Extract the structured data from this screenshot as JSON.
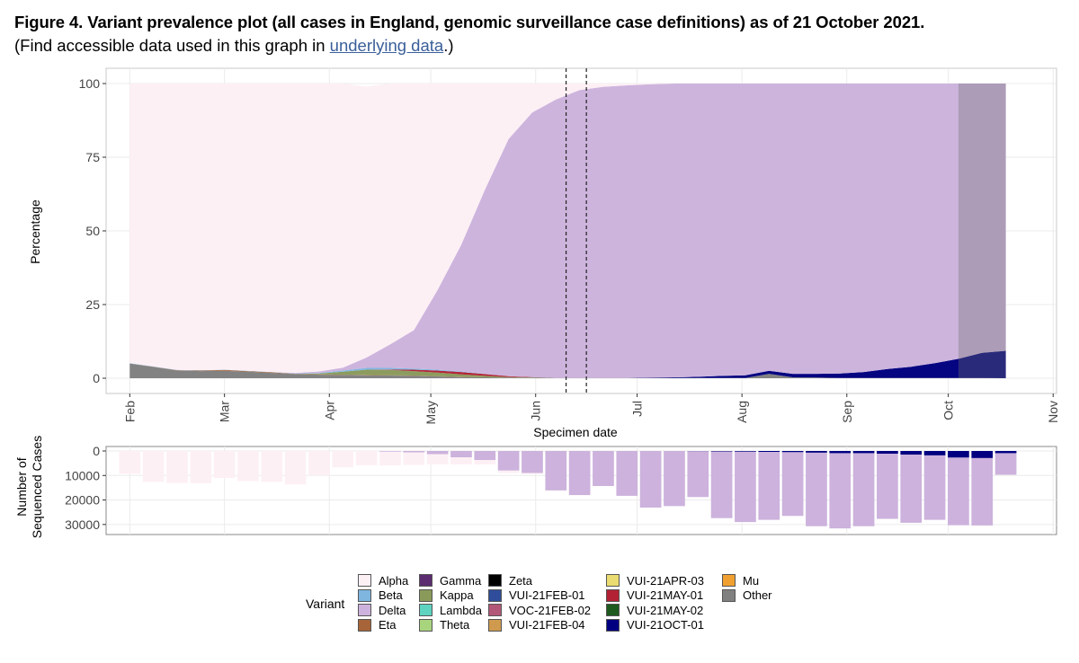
{
  "header": {
    "title": "Figure 4. Variant prevalence plot (all cases in England, genomic surveillance case definitions) as of 21 October 2021.",
    "subtitle_before": "(Find accessible data used in this graph in ",
    "subtitle_link": "underlying data",
    "subtitle_after": ".)"
  },
  "chart_data": [
    {
      "type": "area",
      "xlabel": "Specimen date",
      "ylabel": "Percentage",
      "ylim": [
        0,
        100
      ],
      "yticks": [
        "0",
        "25",
        "50",
        "75",
        "100"
      ],
      "x_tick_labels": [
        "Feb",
        "Mar",
        "Apr",
        "May",
        "Jun",
        "Jul",
        "Aug",
        "Sep",
        "Oct",
        "Nov"
      ],
      "x_tick_dates": [
        "2021-02-01",
        "2021-03-01",
        "2021-04-01",
        "2021-05-01",
        "2021-06-01",
        "2021-07-01",
        "2021-08-01",
        "2021-09-01",
        "2021-10-01",
        "2021-11-01"
      ],
      "x": [
        "2021-02-01",
        "2021-02-08",
        "2021-02-15",
        "2021-02-22",
        "2021-03-01",
        "2021-03-08",
        "2021-03-15",
        "2021-03-22",
        "2021-03-29",
        "2021-04-05",
        "2021-04-12",
        "2021-04-19",
        "2021-04-26",
        "2021-05-03",
        "2021-05-10",
        "2021-05-17",
        "2021-05-24",
        "2021-05-31",
        "2021-06-07",
        "2021-06-14",
        "2021-06-21",
        "2021-06-28",
        "2021-07-05",
        "2021-07-12",
        "2021-07-19",
        "2021-07-26",
        "2021-08-02",
        "2021-08-09",
        "2021-08-16",
        "2021-08-23",
        "2021-08-30",
        "2021-09-06",
        "2021-09-13",
        "2021-09-20",
        "2021-09-27",
        "2021-10-04",
        "2021-10-11",
        "2021-10-18"
      ],
      "series": [
        {
          "name": "Other",
          "values": [
            5,
            3.8,
            2.6,
            2.4,
            2.5,
            2.2,
            1.8,
            1.4,
            1.2,
            1.1,
            1.0,
            0.9,
            0.8,
            0.6,
            0.4,
            0.3,
            0.2,
            0.2,
            0.1,
            0.1,
            0.1,
            0.1,
            0.1,
            0.1,
            0.1,
            0.1,
            0.1,
            1.5,
            0.3,
            0.2,
            0.1,
            0.1,
            0.1,
            0.1,
            0.1,
            0.1,
            0.1,
            0
          ]
        },
        {
          "name": "Eta",
          "values": [
            0,
            0.1,
            0.1,
            0.2,
            0.3,
            0.2,
            0.2,
            0.1,
            0.1,
            0.1,
            0.1,
            0.1,
            0.1,
            0.1,
            0.1,
            0,
            0,
            0,
            0,
            0,
            0,
            0,
            0,
            0,
            0,
            0,
            0,
            0,
            0,
            0,
            0,
            0,
            0,
            0,
            0,
            0,
            0,
            0
          ]
        },
        {
          "name": "Kappa",
          "values": [
            0,
            0,
            0,
            0,
            0,
            0,
            0,
            0,
            0.3,
            1.0,
            1.8,
            1.8,
            1.5,
            1.2,
            0.8,
            0.5,
            0.2,
            0.1,
            0,
            0,
            0,
            0,
            0,
            0,
            0,
            0,
            0,
            0,
            0,
            0,
            0,
            0,
            0,
            0,
            0,
            0,
            0,
            0
          ]
        },
        {
          "name": "VUI-21MAY-01",
          "values": [
            0,
            0,
            0,
            0,
            0,
            0,
            0,
            0,
            0,
            0,
            0,
            0.2,
            0.5,
            0.7,
            0.8,
            0.6,
            0.3,
            0.1,
            0,
            0,
            0,
            0,
            0,
            0,
            0,
            0,
            0,
            0,
            0,
            0,
            0,
            0,
            0,
            0,
            0,
            0,
            0,
            0
          ]
        },
        {
          "name": "VUI-21OCT-01",
          "values": [
            0,
            0,
            0,
            0,
            0,
            0,
            0,
            0,
            0,
            0,
            0,
            0,
            0,
            0,
            0,
            0,
            0,
            0,
            0,
            0,
            0,
            0,
            0.1,
            0.2,
            0.4,
            0.7,
            0.9,
            1.0,
            1.2,
            1.3,
            1.5,
            2.0,
            3.0,
            3.8,
            5.0,
            6.5,
            8.5,
            9.3
          ]
        },
        {
          "name": "Beta",
          "values": [
            0.1,
            0.1,
            0.1,
            0.1,
            0.1,
            0.1,
            0.1,
            0.1,
            0.2,
            0.4,
            0.6,
            0.5,
            0.4,
            0.3,
            0.2,
            0.1,
            0,
            0,
            0,
            0,
            0,
            0,
            0,
            0,
            0,
            0,
            0,
            0,
            0,
            0,
            0,
            0,
            0,
            0,
            0,
            0,
            0,
            0
          ]
        },
        {
          "name": "Delta",
          "values": [
            0,
            0,
            0,
            0,
            0,
            0,
            0,
            0.2,
            0.5,
            1.0,
            3.5,
            8.0,
            13.0,
            27.0,
            43.0,
            62.5,
            80.5,
            89.8,
            94.5,
            97.7,
            98.8,
            99.3,
            99.6,
            99.7,
            99.5,
            99.2,
            99.0,
            97.5,
            98.5,
            98.5,
            98.4,
            97.9,
            96.9,
            96.1,
            94.9,
            93.4,
            91.4,
            90.7
          ]
        },
        {
          "name": "Alpha",
          "values": [
            94.9,
            96.0,
            97.2,
            97.3,
            97.1,
            97.5,
            97.9,
            98.2,
            97.7,
            96.4,
            92.0,
            88.5,
            83.7,
            70.1,
            54.7,
            36.0,
            18.8,
            9.8,
            5.4,
            2.2,
            1.1,
            0.6,
            0.2,
            0,
            0,
            0,
            0,
            0,
            0,
            0,
            0,
            0,
            0,
            0,
            0,
            0,
            0,
            0
          ]
        }
      ],
      "annotations": {
        "dashed_lines": [
          "2021-06-10",
          "2021-06-16"
        ],
        "incomplete_period_shaded_from": "2021-10-04"
      },
      "grid": true
    },
    {
      "type": "bar",
      "ylabel": "Number of Sequenced Cases",
      "y_axis_reversed": true,
      "ylim": [
        0,
        33000
      ],
      "yticks": [
        "0",
        "10000",
        "20000",
        "30000"
      ],
      "x": [
        "2021-02-01",
        "2021-02-08",
        "2021-02-15",
        "2021-02-22",
        "2021-03-01",
        "2021-03-08",
        "2021-03-15",
        "2021-03-22",
        "2021-03-29",
        "2021-04-05",
        "2021-04-12",
        "2021-04-19",
        "2021-04-26",
        "2021-05-03",
        "2021-05-10",
        "2021-05-17",
        "2021-05-24",
        "2021-05-31",
        "2021-06-07",
        "2021-06-14",
        "2021-06-21",
        "2021-06-28",
        "2021-07-05",
        "2021-07-12",
        "2021-07-19",
        "2021-07-26",
        "2021-08-02",
        "2021-08-09",
        "2021-08-16",
        "2021-08-23",
        "2021-08-30",
        "2021-09-06",
        "2021-09-13",
        "2021-09-20",
        "2021-09-27",
        "2021-10-04",
        "2021-10-11",
        "2021-10-18"
      ],
      "series": [
        {
          "name": "Alpha",
          "values": [
            9300,
            12600,
            13100,
            13200,
            11000,
            12300,
            12600,
            13700,
            10000,
            6700,
            5800,
            5600,
            5100,
            4200,
            2900,
            1800,
            1000,
            400,
            200,
            100,
            0,
            0,
            0,
            0,
            0,
            0,
            0,
            0,
            0,
            0,
            0,
            0,
            0,
            0,
            0,
            0,
            0,
            0
          ]
        },
        {
          "name": "Delta",
          "values": [
            0,
            0,
            0,
            0,
            0,
            0,
            0,
            0,
            0,
            0,
            0,
            300,
            600,
            1300,
            2600,
            3700,
            8000,
            9000,
            16100,
            18000,
            14300,
            18300,
            23100,
            22500,
            18700,
            27200,
            28700,
            27700,
            26000,
            30000,
            30700,
            29800,
            26600,
            27800,
            26300,
            27600,
            27500,
            8800
          ]
        },
        {
          "name": "VUI-21OCT-01",
          "values": [
            0,
            0,
            0,
            0,
            0,
            0,
            0,
            0,
            0,
            0,
            0,
            0,
            0,
            0,
            0,
            0,
            0,
            0,
            0,
            0,
            0,
            0,
            0,
            0,
            100,
            200,
            300,
            400,
            500,
            700,
            900,
            900,
            1100,
            1500,
            1800,
            2700,
            2900,
            900
          ]
        }
      ],
      "grid": true
    }
  ],
  "legend": {
    "title": "Variant",
    "columns": [
      [
        {
          "label": "Alpha",
          "color": "#fdf0f5"
        },
        {
          "label": "Beta",
          "color": "#7eb6e0"
        },
        {
          "label": "Delta",
          "color": "#ccb2dc"
        },
        {
          "label": "Eta",
          "color": "#a66438"
        }
      ],
      [
        {
          "label": "Gamma",
          "color": "#5b2c6f"
        },
        {
          "label": "Kappa",
          "color": "#8a9a5b"
        },
        {
          "label": "Lambda",
          "color": "#5ed3c0"
        },
        {
          "label": "Theta",
          "color": "#a9d47e"
        }
      ],
      [
        {
          "label": "Zeta",
          "color": "#000000"
        },
        {
          "label": "VUI-21FEB-01",
          "color": "#2f4d9a"
        },
        {
          "label": "VOC-21FEB-02",
          "color": "#b35778"
        },
        {
          "label": "VUI-21FEB-04",
          "color": "#cf9a4e"
        }
      ],
      [
        {
          "label": "VUI-21APR-03",
          "color": "#eadc70"
        },
        {
          "label": "VUI-21MAY-01",
          "color": "#b22234"
        },
        {
          "label": "VUI-21MAY-02",
          "color": "#1e5a1e"
        },
        {
          "label": "VUI-21OCT-01",
          "color": "#000080"
        }
      ],
      [
        {
          "label": "Mu",
          "color": "#f0a030"
        },
        {
          "label": "Other",
          "color": "#808080"
        }
      ]
    ]
  },
  "series_colors": {
    "Alpha": "#fdf0f5",
    "Beta": "#7eb6e0",
    "Delta": "#ccb2dc",
    "Eta": "#a66438",
    "Kappa": "#8a9a5b",
    "VUI-21MAY-01": "#b22234",
    "VUI-21OCT-01": "#000080",
    "Other": "#808080"
  }
}
